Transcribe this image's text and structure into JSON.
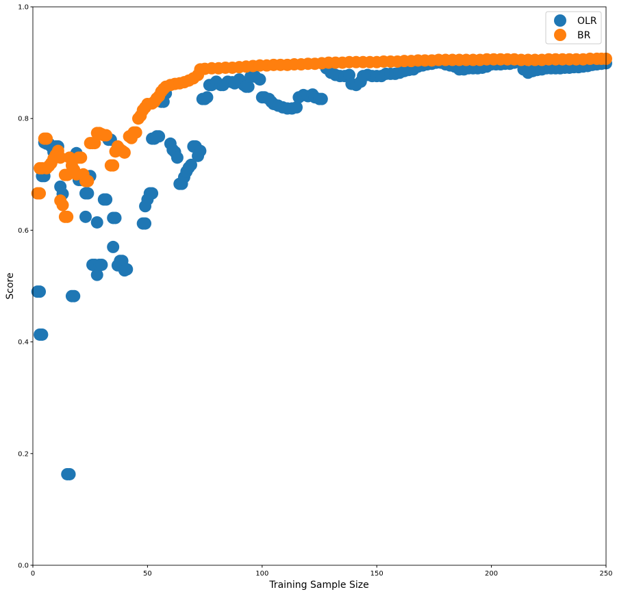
{
  "chart_data": {
    "type": "scatter",
    "title": "",
    "xlabel": "Training Sample Size",
    "ylabel": "Score",
    "xlim": [
      0,
      250
    ],
    "ylim": [
      0.0,
      1.0
    ],
    "xticks": [
      "0",
      "50",
      "100",
      "150",
      "200",
      "250"
    ],
    "yticks": [
      "0.0",
      "0.2",
      "0.4",
      "0.6",
      "0.8",
      "1.0"
    ],
    "grid": false,
    "legend_position": "top-right",
    "series": [
      {
        "name": "OLR",
        "color": "#1f77b4",
        "points": [
          [
            2,
            0.49
          ],
          [
            3,
            0.49
          ],
          [
            3,
            0.413
          ],
          [
            4,
            0.413
          ],
          [
            4,
            0.697
          ],
          [
            5,
            0.697
          ],
          [
            5,
            0.757
          ],
          [
            6,
            0.755
          ],
          [
            7,
            0.755
          ],
          [
            8,
            0.75
          ],
          [
            9,
            0.74
          ],
          [
            10,
            0.75
          ],
          [
            11,
            0.75
          ],
          [
            12,
            0.678
          ],
          [
            13,
            0.665
          ],
          [
            15,
            0.163
          ],
          [
            16,
            0.163
          ],
          [
            17,
            0.482
          ],
          [
            18,
            0.482
          ],
          [
            19,
            0.738
          ],
          [
            20,
            0.69
          ],
          [
            21,
            0.69
          ],
          [
            23,
            0.624
          ],
          [
            23,
            0.666
          ],
          [
            24,
            0.666
          ],
          [
            25,
            0.697
          ],
          [
            26,
            0.538
          ],
          [
            27,
            0.538
          ],
          [
            28,
            0.52
          ],
          [
            28,
            0.614
          ],
          [
            29,
            0.538
          ],
          [
            30,
            0.538
          ],
          [
            31,
            0.655
          ],
          [
            32,
            0.655
          ],
          [
            33,
            0.762
          ],
          [
            34,
            0.762
          ],
          [
            35,
            0.57
          ],
          [
            35,
            0.622
          ],
          [
            36,
            0.622
          ],
          [
            37,
            0.537
          ],
          [
            38,
            0.545
          ],
          [
            39,
            0.545
          ],
          [
            40,
            0.528
          ],
          [
            41,
            0.53
          ],
          [
            48,
            0.612
          ],
          [
            49,
            0.612
          ],
          [
            49,
            0.643
          ],
          [
            50,
            0.655
          ],
          [
            51,
            0.666
          ],
          [
            52,
            0.666
          ],
          [
            52,
            0.764
          ],
          [
            53,
            0.764
          ],
          [
            54,
            0.768
          ],
          [
            55,
            0.768
          ],
          [
            56,
            0.83
          ],
          [
            57,
            0.83
          ],
          [
            58,
            0.845
          ],
          [
            60,
            0.755
          ],
          [
            61,
            0.744
          ],
          [
            62,
            0.74
          ],
          [
            63,
            0.73
          ],
          [
            64,
            0.683
          ],
          [
            65,
            0.683
          ],
          [
            66,
            0.695
          ],
          [
            67,
            0.705
          ],
          [
            68,
            0.712
          ],
          [
            69,
            0.717
          ],
          [
            70,
            0.75
          ],
          [
            71,
            0.75
          ],
          [
            72,
            0.733
          ],
          [
            73,
            0.742
          ],
          [
            74,
            0.835
          ],
          [
            75,
            0.835
          ],
          [
            76,
            0.838
          ],
          [
            77,
            0.86
          ],
          [
            78,
            0.86
          ],
          [
            80,
            0.866
          ],
          [
            82,
            0.86
          ],
          [
            83,
            0.86
          ],
          [
            85,
            0.866
          ],
          [
            87,
            0.865
          ],
          [
            88,
            0.863
          ],
          [
            90,
            0.87
          ],
          [
            92,
            0.86
          ],
          [
            93,
            0.857
          ],
          [
            94,
            0.857
          ],
          [
            95,
            0.875
          ],
          [
            97,
            0.875
          ],
          [
            99,
            0.87
          ],
          [
            100,
            0.838
          ],
          [
            101,
            0.838
          ],
          [
            103,
            0.835
          ],
          [
            104,
            0.83
          ],
          [
            105,
            0.826
          ],
          [
            107,
            0.823
          ],
          [
            109,
            0.82
          ],
          [
            111,
            0.818
          ],
          [
            113,
            0.818
          ],
          [
            115,
            0.82
          ],
          [
            116,
            0.838
          ],
          [
            118,
            0.842
          ],
          [
            120,
            0.84
          ],
          [
            122,
            0.843
          ],
          [
            123,
            0.838
          ],
          [
            125,
            0.835
          ],
          [
            126,
            0.835
          ],
          [
            128,
            0.89
          ],
          [
            130,
            0.882
          ],
          [
            132,
            0.878
          ],
          [
            134,
            0.876
          ],
          [
            136,
            0.876
          ],
          [
            138,
            0.878
          ],
          [
            139,
            0.862
          ],
          [
            141,
            0.86
          ],
          [
            143,
            0.866
          ],
          [
            144,
            0.876
          ],
          [
            146,
            0.878
          ],
          [
            148,
            0.876
          ],
          [
            150,
            0.876
          ],
          [
            152,
            0.876
          ],
          [
            154,
            0.88
          ],
          [
            156,
            0.88
          ],
          [
            158,
            0.88
          ],
          [
            160,
            0.882
          ],
          [
            162,
            0.885
          ],
          [
            164,
            0.887
          ],
          [
            166,
            0.888
          ],
          [
            168,
            0.893
          ],
          [
            170,
            0.895
          ],
          [
            172,
            0.897
          ],
          [
            174,
            0.898
          ],
          [
            176,
            0.9
          ],
          [
            178,
            0.9
          ],
          [
            180,
            0.897
          ],
          [
            182,
            0.895
          ],
          [
            184,
            0.893
          ],
          [
            186,
            0.888
          ],
          [
            188,
            0.888
          ],
          [
            190,
            0.89
          ],
          [
            192,
            0.89
          ],
          [
            194,
            0.89
          ],
          [
            196,
            0.891
          ],
          [
            198,
            0.893
          ],
          [
            200,
            0.897
          ],
          [
            202,
            0.897
          ],
          [
            204,
            0.897
          ],
          [
            206,
            0.898
          ],
          [
            208,
            0.898
          ],
          [
            210,
            0.9
          ],
          [
            212,
            0.902
          ],
          [
            214,
            0.888
          ],
          [
            216,
            0.882
          ],
          [
            218,
            0.885
          ],
          [
            220,
            0.887
          ],
          [
            222,
            0.888
          ],
          [
            224,
            0.89
          ],
          [
            226,
            0.89
          ],
          [
            228,
            0.89
          ],
          [
            230,
            0.89
          ],
          [
            232,
            0.891
          ],
          [
            234,
            0.891
          ],
          [
            236,
            0.892
          ],
          [
            238,
            0.892
          ],
          [
            240,
            0.893
          ],
          [
            242,
            0.894
          ],
          [
            244,
            0.896
          ],
          [
            246,
            0.897
          ],
          [
            248,
            0.898
          ],
          [
            250,
            0.899
          ]
        ]
      },
      {
        "name": "BR",
        "color": "#ff7f0e",
        "points": [
          [
            2,
            0.666
          ],
          [
            3,
            0.666
          ],
          [
            3,
            0.711
          ],
          [
            4,
            0.711
          ],
          [
            5,
            0.764
          ],
          [
            6,
            0.764
          ],
          [
            6,
            0.711
          ],
          [
            7,
            0.715
          ],
          [
            8,
            0.72
          ],
          [
            9,
            0.728
          ],
          [
            10,
            0.735
          ],
          [
            11,
            0.742
          ],
          [
            12,
            0.73
          ],
          [
            12,
            0.653
          ],
          [
            13,
            0.645
          ],
          [
            14,
            0.624
          ],
          [
            15,
            0.624
          ],
          [
            14,
            0.699
          ],
          [
            15,
            0.699
          ],
          [
            16,
            0.73
          ],
          [
            17,
            0.716
          ],
          [
            18,
            0.708
          ],
          [
            19,
            0.7
          ],
          [
            20,
            0.73
          ],
          [
            21,
            0.73
          ],
          [
            22,
            0.7
          ],
          [
            23,
            0.688
          ],
          [
            24,
            0.688
          ],
          [
            25,
            0.756
          ],
          [
            26,
            0.756
          ],
          [
            27,
            0.756
          ],
          [
            28,
            0.774
          ],
          [
            29,
            0.774
          ],
          [
            30,
            0.772
          ],
          [
            31,
            0.77
          ],
          [
            32,
            0.77
          ],
          [
            34,
            0.716
          ],
          [
            35,
            0.716
          ],
          [
            36,
            0.741
          ],
          [
            37,
            0.75
          ],
          [
            38,
            0.745
          ],
          [
            39,
            0.742
          ],
          [
            40,
            0.739
          ],
          [
            42,
            0.768
          ],
          [
            43,
            0.765
          ],
          [
            44,
            0.775
          ],
          [
            45,
            0.775
          ],
          [
            46,
            0.8
          ],
          [
            47,
            0.805
          ],
          [
            48,
            0.815
          ],
          [
            49,
            0.82
          ],
          [
            50,
            0.826
          ],
          [
            52,
            0.827
          ],
          [
            53,
            0.83
          ],
          [
            54,
            0.836
          ],
          [
            55,
            0.84
          ],
          [
            56,
            0.848
          ],
          [
            57,
            0.853
          ],
          [
            58,
            0.857
          ],
          [
            60,
            0.86
          ],
          [
            62,
            0.862
          ],
          [
            64,
            0.863
          ],
          [
            66,
            0.865
          ],
          [
            68,
            0.868
          ],
          [
            70,
            0.872
          ],
          [
            72,
            0.878
          ],
          [
            73,
            0.888
          ],
          [
            75,
            0.889
          ],
          [
            78,
            0.89
          ],
          [
            81,
            0.89
          ],
          [
            84,
            0.891
          ],
          [
            87,
            0.891
          ],
          [
            90,
            0.892
          ],
          [
            93,
            0.893
          ],
          [
            96,
            0.894
          ],
          [
            99,
            0.895
          ],
          [
            102,
            0.895
          ],
          [
            105,
            0.896
          ],
          [
            108,
            0.896
          ],
          [
            111,
            0.896
          ],
          [
            114,
            0.897
          ],
          [
            117,
            0.897
          ],
          [
            120,
            0.898
          ],
          [
            123,
            0.898
          ],
          [
            126,
            0.899
          ],
          [
            129,
            0.9
          ],
          [
            132,
            0.9
          ],
          [
            135,
            0.9
          ],
          [
            138,
            0.901
          ],
          [
            141,
            0.901
          ],
          [
            144,
            0.901
          ],
          [
            147,
            0.901
          ],
          [
            150,
            0.901
          ],
          [
            153,
            0.902
          ],
          [
            156,
            0.902
          ],
          [
            159,
            0.902
          ],
          [
            162,
            0.903
          ],
          [
            165,
            0.903
          ],
          [
            168,
            0.904
          ],
          [
            171,
            0.904
          ],
          [
            174,
            0.904
          ],
          [
            177,
            0.905
          ],
          [
            180,
            0.905
          ],
          [
            183,
            0.905
          ],
          [
            186,
            0.905
          ],
          [
            189,
            0.905
          ],
          [
            192,
            0.905
          ],
          [
            195,
            0.905
          ],
          [
            198,
            0.906
          ],
          [
            201,
            0.906
          ],
          [
            204,
            0.906
          ],
          [
            207,
            0.906
          ],
          [
            210,
            0.906
          ],
          [
            213,
            0.905
          ],
          [
            216,
            0.905
          ],
          [
            219,
            0.905
          ],
          [
            222,
            0.905
          ],
          [
            225,
            0.906
          ],
          [
            228,
            0.906
          ],
          [
            231,
            0.906
          ],
          [
            234,
            0.906
          ],
          [
            237,
            0.906
          ],
          [
            240,
            0.906
          ],
          [
            243,
            0.907
          ],
          [
            246,
            0.907
          ],
          [
            248,
            0.907
          ],
          [
            250,
            0.907
          ]
        ]
      }
    ]
  }
}
